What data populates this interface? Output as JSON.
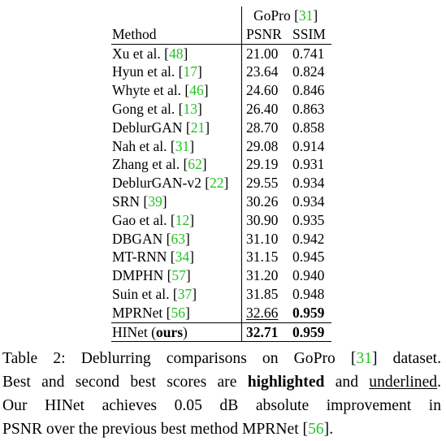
{
  "table": {
    "group_header": "GoPro",
    "group_cite": "31",
    "col_method": "Method",
    "col_psnr": "PSNR",
    "col_ssim": "SSIM",
    "rows": [
      {
        "method": "Xu et al.",
        "cite": "48",
        "psnr": "21.00",
        "ssim": "0.741"
      },
      {
        "method": "Hyun et al.",
        "cite": "17",
        "psnr": "23.64",
        "ssim": "0.824"
      },
      {
        "method": "Whyte et al.",
        "cite": "46",
        "psnr": "24.60",
        "ssim": "0.846"
      },
      {
        "method": "Gong et al.",
        "cite": "13",
        "psnr": "26.40",
        "ssim": "0.863"
      },
      {
        "method": "DeblurGAN",
        "cite": "21",
        "psnr": "28.70",
        "ssim": "0.858"
      },
      {
        "method": "Nah et al.",
        "cite": "31",
        "psnr": "29.08",
        "ssim": "0.914"
      },
      {
        "method": "Zhang et al.",
        "cite": "62",
        "psnr": "29.19",
        "ssim": "0.931"
      },
      {
        "method": "DeblurGAN-v2",
        "cite": "22",
        "psnr": "29.55",
        "ssim": "0.934"
      },
      {
        "method": "SRN",
        "cite": "39",
        "psnr": "30.26",
        "ssim": "0.934"
      },
      {
        "method": "Gao et al.",
        "cite": "12",
        "psnr": "30.90",
        "ssim": "0.935"
      },
      {
        "method": "DBGAN",
        "cite": "63",
        "psnr": "31.10",
        "ssim": "0.942"
      },
      {
        "method": "MT-RNN",
        "cite": "34",
        "psnr": "31.15",
        "ssim": "0.945"
      },
      {
        "method": "DMPHN",
        "cite": "57",
        "psnr": "31.20",
        "ssim": "0.940"
      },
      {
        "method": "Suin et al.",
        "cite": "37",
        "psnr": "31.85",
        "ssim": "0.948"
      },
      {
        "method": "MPRNet",
        "cite": "56",
        "psnr": "32.66",
        "ssim": "0.959"
      }
    ],
    "final_row": {
      "method_prefix": "HINet (",
      "method_bold": "ours",
      "method_suffix": ")",
      "psnr": "32.71",
      "ssim": "0.959"
    }
  },
  "caption": {
    "line1_a": "Table 2: Deblurring comparisons on GoPro [",
    "line1_cite": "31",
    "line1_b": "] dataset.",
    "line2_a": "Best and second best scores are ",
    "line2_bold": "highlighted",
    "line2_b": " and ",
    "line2_under": "underlined",
    "line2_c": ".",
    "line3": "Our HINet achieves 0.05 dB absolute improvement in",
    "line4_a": "PSNR over the previous best method MPRNet [",
    "line4_cite": "56",
    "line4_b": "]."
  }
}
